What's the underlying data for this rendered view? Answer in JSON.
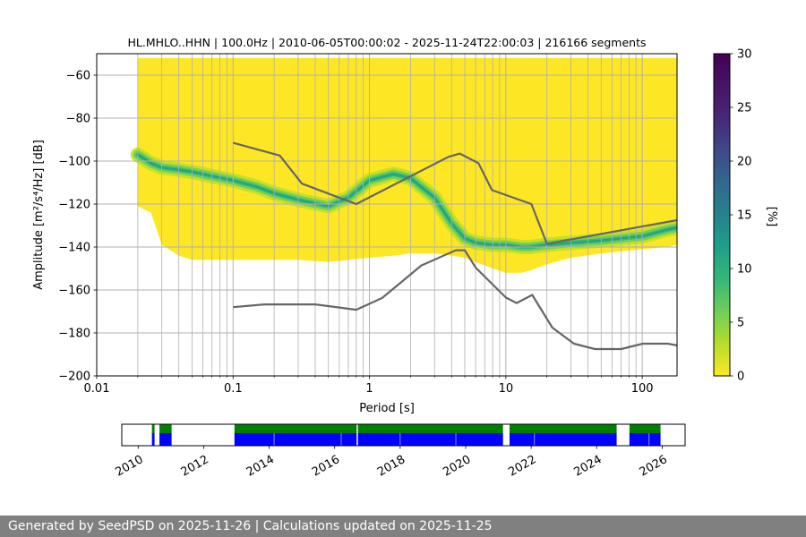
{
  "title": "HL.MHLO..HHN | 100.0Hz | 2010-06-05T00:00:02 - 2025-11-24T22:00:03 | 216166 segments",
  "footer": "Generated by SeedPSD on 2025-11-26 | Calculations updated on 2025-11-25",
  "colors": {
    "model_line": "#666666",
    "grid": "#b0b0b0",
    "availability_blue": "#0000ff",
    "availability_green": "#008000"
  },
  "chart_data": [
    {
      "type": "heatmap",
      "title": "HL.MHLO..HHN | 100.0Hz | 2010-06-05T00:00:02 - 2025-11-24T22:00:03 | 216166 segments",
      "xlabel": "Period [s]",
      "ylabel": "Amplitude [m²/s⁴/Hz] [dB]",
      "xscale": "log",
      "xlim": [
        0.01,
        180
      ],
      "ylim": [
        -200,
        -50
      ],
      "xticks": [
        0.01,
        0.1,
        1,
        10,
        100
      ],
      "xtick_labels": [
        "0.01",
        "0.1",
        "1",
        "10",
        "100"
      ],
      "yticks": [
        -200,
        -180,
        -160,
        -140,
        -120,
        -100,
        -80,
        -60
      ],
      "ytick_labels": [
        "−200",
        "−180",
        "−160",
        "−140",
        "−120",
        "−100",
        "−80",
        "−60"
      ],
      "grid": true,
      "colormap": "viridis_r",
      "colorbar": {
        "label": "[%]",
        "range": [
          0,
          30
        ],
        "ticks": [
          0,
          5,
          10,
          15,
          20,
          25,
          30
        ],
        "tick_labels": [
          "0",
          "5",
          "10",
          "15",
          "20",
          "25",
          "30"
        ]
      },
      "psd_extent": {
        "period": [
          0.02,
          0.025,
          0.03,
          0.04,
          0.05,
          0.07,
          0.1,
          0.15,
          0.2,
          0.3,
          0.5,
          0.7,
          1,
          1.5,
          2,
          3,
          4,
          5,
          6,
          8,
          10,
          13,
          15,
          20,
          30,
          50,
          70,
          100,
          150,
          180
        ],
        "upper_db": [
          -52,
          -52,
          -52,
          -52,
          -52,
          -52,
          -52,
          -52,
          -52,
          -52,
          -52,
          -52,
          -52,
          -52,
          -52,
          -52,
          -52,
          -52,
          -52,
          -52,
          -52,
          -52,
          -52,
          -52,
          -52,
          -52,
          -52,
          -52,
          -52,
          -52
        ],
        "lower_db": [
          -121,
          -124,
          -139,
          -144,
          -146,
          -146,
          -146,
          -146,
          -146,
          -146,
          -147,
          -146,
          -145,
          -144,
          -143,
          -143,
          -144,
          -145,
          -147,
          -150,
          -152,
          -152,
          -151,
          -148,
          -145,
          -143,
          -142,
          -141,
          -140,
          -139
        ],
        "mode_db": [
          -97,
          -101,
          -103,
          -104,
          -105,
          -107,
          -109,
          -112,
          -115,
          -118,
          -121,
          -117,
          -109,
          -106,
          -108,
          -117,
          -129,
          -136,
          -138,
          -139,
          -139,
          -140,
          -140,
          -139,
          -138,
          -137,
          -136,
          -135,
          -132,
          -131
        ]
      },
      "series": [
        {
          "name": "",
          "x": [
            0.1,
            0.22,
            0.32,
            0.8,
            3.8,
            4.6,
            6.3,
            7.9,
            15.4,
            20,
            180
          ],
          "y": [
            -91.5,
            -97.4,
            -110.5,
            -120,
            -98,
            -96.5,
            -101,
            -113.5,
            -120,
            -138.5,
            -127.5
          ]
        },
        {
          "name": "",
          "x": [
            0.1,
            0.17,
            0.4,
            0.8,
            1.24,
            2.4,
            4.3,
            5,
            6,
            10,
            12,
            15.6,
            21.9,
            31.6,
            45,
            70,
            101,
            154,
            180
          ],
          "y": [
            -168,
            -166.7,
            -166.7,
            -169.2,
            -163.7,
            -148.6,
            -141.5,
            -141.5,
            -149.6,
            -163.5,
            -166.1,
            -162.3,
            -177.5,
            -185,
            -187.5,
            -187.5,
            -185,
            -185,
            -185.8
          ]
        }
      ]
    },
    {
      "type": "bar",
      "title": "",
      "xlabel": "",
      "ylabel": "",
      "xlim": [
        2009.5,
        2026.7
      ],
      "xticks": [
        2010,
        2012,
        2014,
        2016,
        2018,
        2020,
        2022,
        2024,
        2026
      ],
      "xtick_labels": [
        "2010",
        "2012",
        "2014",
        "2016",
        "2018",
        "2020",
        "2022",
        "2024",
        "2026"
      ],
      "availability_periods": [
        [
          2010.42,
          2010.5
        ],
        [
          2010.65,
          2011.02
        ],
        [
          2012.94,
          2016.67
        ],
        [
          2016.71,
          2021.14
        ],
        [
          2021.34,
          2024.61
        ],
        [
          2025.0,
          2025.95
        ]
      ]
    }
  ]
}
